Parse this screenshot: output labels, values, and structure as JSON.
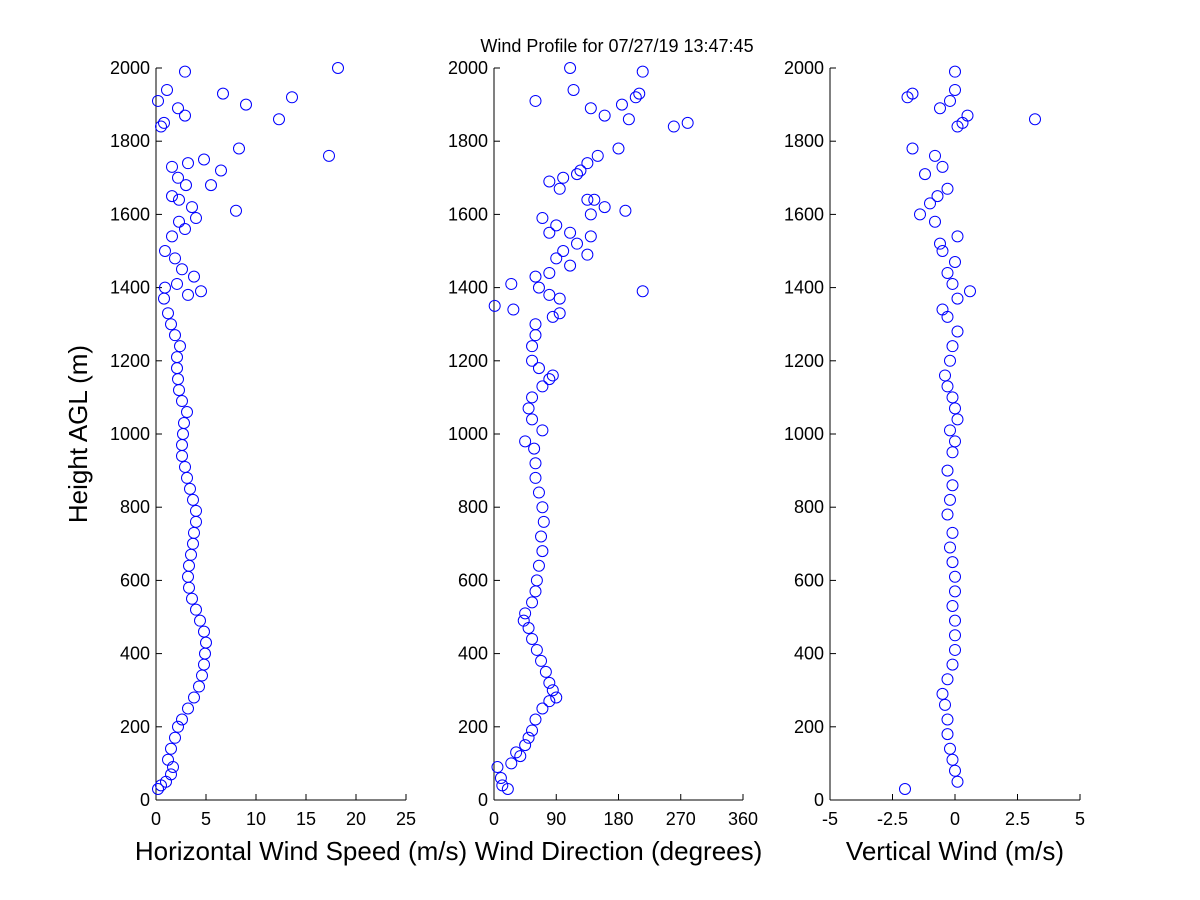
{
  "title": "Wind Profile for  07/27/19 13:47:45",
  "chart_data": [
    {
      "type": "scatter",
      "xlabel": "Horizontal Wind Speed (m/s)",
      "ylabel": "Height AGL (m)",
      "color": "#0000ff",
      "xlim": [
        0,
        25
      ],
      "xticks": [
        0,
        5,
        10,
        15,
        20,
        25
      ],
      "ylim": [
        0,
        2000
      ],
      "yticks": [
        0,
        200,
        400,
        600,
        800,
        1000,
        1200,
        1400,
        1600,
        1800,
        2000
      ],
      "x": [
        0.2,
        0.5,
        1,
        1.5,
        1.7,
        1.2,
        1.5,
        1.9,
        2.2,
        2.6,
        3.2,
        3.8,
        4.3,
        4.6,
        4.8,
        4.9,
        5.0,
        4.8,
        4.4,
        4.0,
        3.6,
        3.3,
        3.2,
        3.3,
        3.5,
        3.7,
        3.8,
        4.0,
        4.0,
        3.7,
        3.4,
        3.1,
        2.9,
        2.6,
        2.6,
        2.7,
        2.8,
        3.1,
        2.6,
        2.3,
        2.2,
        2.1,
        2.1,
        2.4,
        1.9,
        1.5,
        1.2,
        0.8,
        0.9,
        2.1,
        4.5,
        3.2,
        3.8,
        2.6,
        1.9,
        0.9,
        1.6,
        2.9,
        4.0,
        2.3,
        3.6,
        2.3,
        1.6,
        3.0,
        2.2,
        1.6,
        3.2,
        4.8,
        5.5,
        6.5,
        8.0,
        8.3,
        17.3,
        12.3,
        0.5,
        0.8,
        2.9,
        2.2,
        0.2,
        6.7,
        9.0,
        13.6,
        1.1,
        2.9,
        18.2
      ],
      "y": [
        30,
        40,
        50,
        70,
        90,
        110,
        140,
        170,
        200,
        220,
        250,
        280,
        310,
        340,
        370,
        400,
        430,
        460,
        490,
        520,
        550,
        580,
        610,
        640,
        670,
        700,
        730,
        760,
        790,
        820,
        850,
        880,
        910,
        940,
        970,
        1000,
        1030,
        1060,
        1090,
        1120,
        1150,
        1180,
        1210,
        1240,
        1270,
        1300,
        1330,
        1370,
        1400,
        1410,
        1390,
        1380,
        1430,
        1450,
        1480,
        1500,
        1540,
        1560,
        1590,
        1580,
        1620,
        1640,
        1650,
        1680,
        1700,
        1730,
        1740,
        1750,
        1680,
        1720,
        1610,
        1780,
        1760,
        1860,
        1840,
        1850,
        1870,
        1890,
        1910,
        1930,
        1900,
        1920,
        1940,
        1990,
        2000
      ]
    },
    {
      "type": "scatter",
      "xlabel": "Wind Direction (degrees)",
      "color": "#0000ff",
      "xlim": [
        0,
        360
      ],
      "xticks": [
        0,
        90,
        180,
        270,
        360
      ],
      "ylim": [
        0,
        2000
      ],
      "yticks": [
        0,
        200,
        400,
        600,
        800,
        1000,
        1200,
        1400,
        1600,
        1800,
        2000
      ],
      "x": [
        5,
        10,
        12,
        20,
        25,
        38,
        32,
        45,
        50,
        55,
        60,
        70,
        80,
        90,
        85,
        80,
        75,
        68,
        62,
        55,
        50,
        43,
        45,
        55,
        60,
        62,
        65,
        70,
        68,
        72,
        70,
        65,
        60,
        60,
        58,
        45,
        70,
        55,
        50,
        55,
        70,
        80,
        85,
        65,
        55,
        55,
        60,
        60,
        85,
        95,
        1,
        28,
        95,
        80,
        65,
        25,
        60,
        80,
        215,
        110,
        135,
        90,
        100,
        120,
        140,
        80,
        90,
        110,
        70,
        140,
        190,
        160,
        135,
        145,
        125,
        95,
        80,
        100,
        135,
        150,
        180,
        260,
        280,
        120,
        195,
        160,
        185,
        60,
        205,
        210,
        115,
        140,
        110,
        215
      ],
      "y": [
        90,
        60,
        40,
        30,
        100,
        120,
        130,
        150,
        170,
        190,
        220,
        250,
        270,
        280,
        300,
        320,
        350,
        380,
        410,
        440,
        470,
        490,
        510,
        540,
        570,
        600,
        640,
        680,
        720,
        760,
        800,
        840,
        880,
        920,
        960,
        980,
        1010,
        1040,
        1070,
        1100,
        1130,
        1150,
        1160,
        1180,
        1200,
        1240,
        1270,
        1300,
        1320,
        1330,
        1350,
        1340,
        1370,
        1380,
        1400,
        1410,
        1430,
        1440,
        1390,
        1460,
        1490,
        1480,
        1500,
        1520,
        1540,
        1550,
        1570,
        1550,
        1590,
        1600,
        1610,
        1620,
        1640,
        1640,
        1720,
        1670,
        1690,
        1700,
        1740,
        1760,
        1780,
        1840,
        1850,
        1710,
        1860,
        1870,
        1900,
        1910,
        1920,
        1930,
        1940,
        1890,
        2000,
        1990
      ]
    },
    {
      "type": "scatter",
      "xlabel": "Vertical Wind (m/s)",
      "color": "#0000ff",
      "xlim": [
        -5,
        5
      ],
      "xticks": [
        -5,
        -2.5,
        0,
        2.5,
        5
      ],
      "ylim": [
        0,
        2000
      ],
      "yticks": [
        0,
        200,
        400,
        600,
        800,
        1000,
        1200,
        1400,
        1600,
        1800,
        2000
      ],
      "x": [
        -2,
        0.1,
        0,
        -0.1,
        -0.2,
        -0.3,
        -0.3,
        -0.4,
        -0.5,
        -0.3,
        -0.1,
        0,
        0,
        0,
        -0.1,
        0,
        0,
        -0.1,
        -0.2,
        -0.1,
        -0.3,
        -0.2,
        -0.1,
        -0.3,
        -0.1,
        0,
        -0.2,
        0.1,
        0,
        -0.1,
        -0.3,
        -0.4,
        -0.2,
        -0.1,
        0.1,
        -0.3,
        -0.5,
        0.1,
        0.6,
        -0.1,
        -0.3,
        0,
        -0.5,
        -0.6,
        0.1,
        -0.8,
        -1.4,
        -1.0,
        -0.7,
        -0.3,
        -1.2,
        -0.5,
        -0.8,
        -1.7,
        0.1,
        0.3,
        0.5,
        3.2,
        -0.6,
        -0.2,
        -1.9,
        -1.7,
        0,
        0
      ],
      "y": [
        30,
        50,
        80,
        110,
        140,
        180,
        220,
        260,
        290,
        330,
        370,
        410,
        450,
        490,
        530,
        570,
        610,
        650,
        690,
        730,
        780,
        820,
        860,
        900,
        950,
        980,
        1010,
        1040,
        1070,
        1100,
        1130,
        1160,
        1200,
        1240,
        1280,
        1320,
        1340,
        1370,
        1390,
        1410,
        1440,
        1470,
        1500,
        1520,
        1540,
        1580,
        1600,
        1630,
        1650,
        1670,
        1710,
        1730,
        1760,
        1780,
        1840,
        1850,
        1870,
        1860,
        1890,
        1910,
        1920,
        1930,
        1940,
        1990
      ]
    }
  ]
}
